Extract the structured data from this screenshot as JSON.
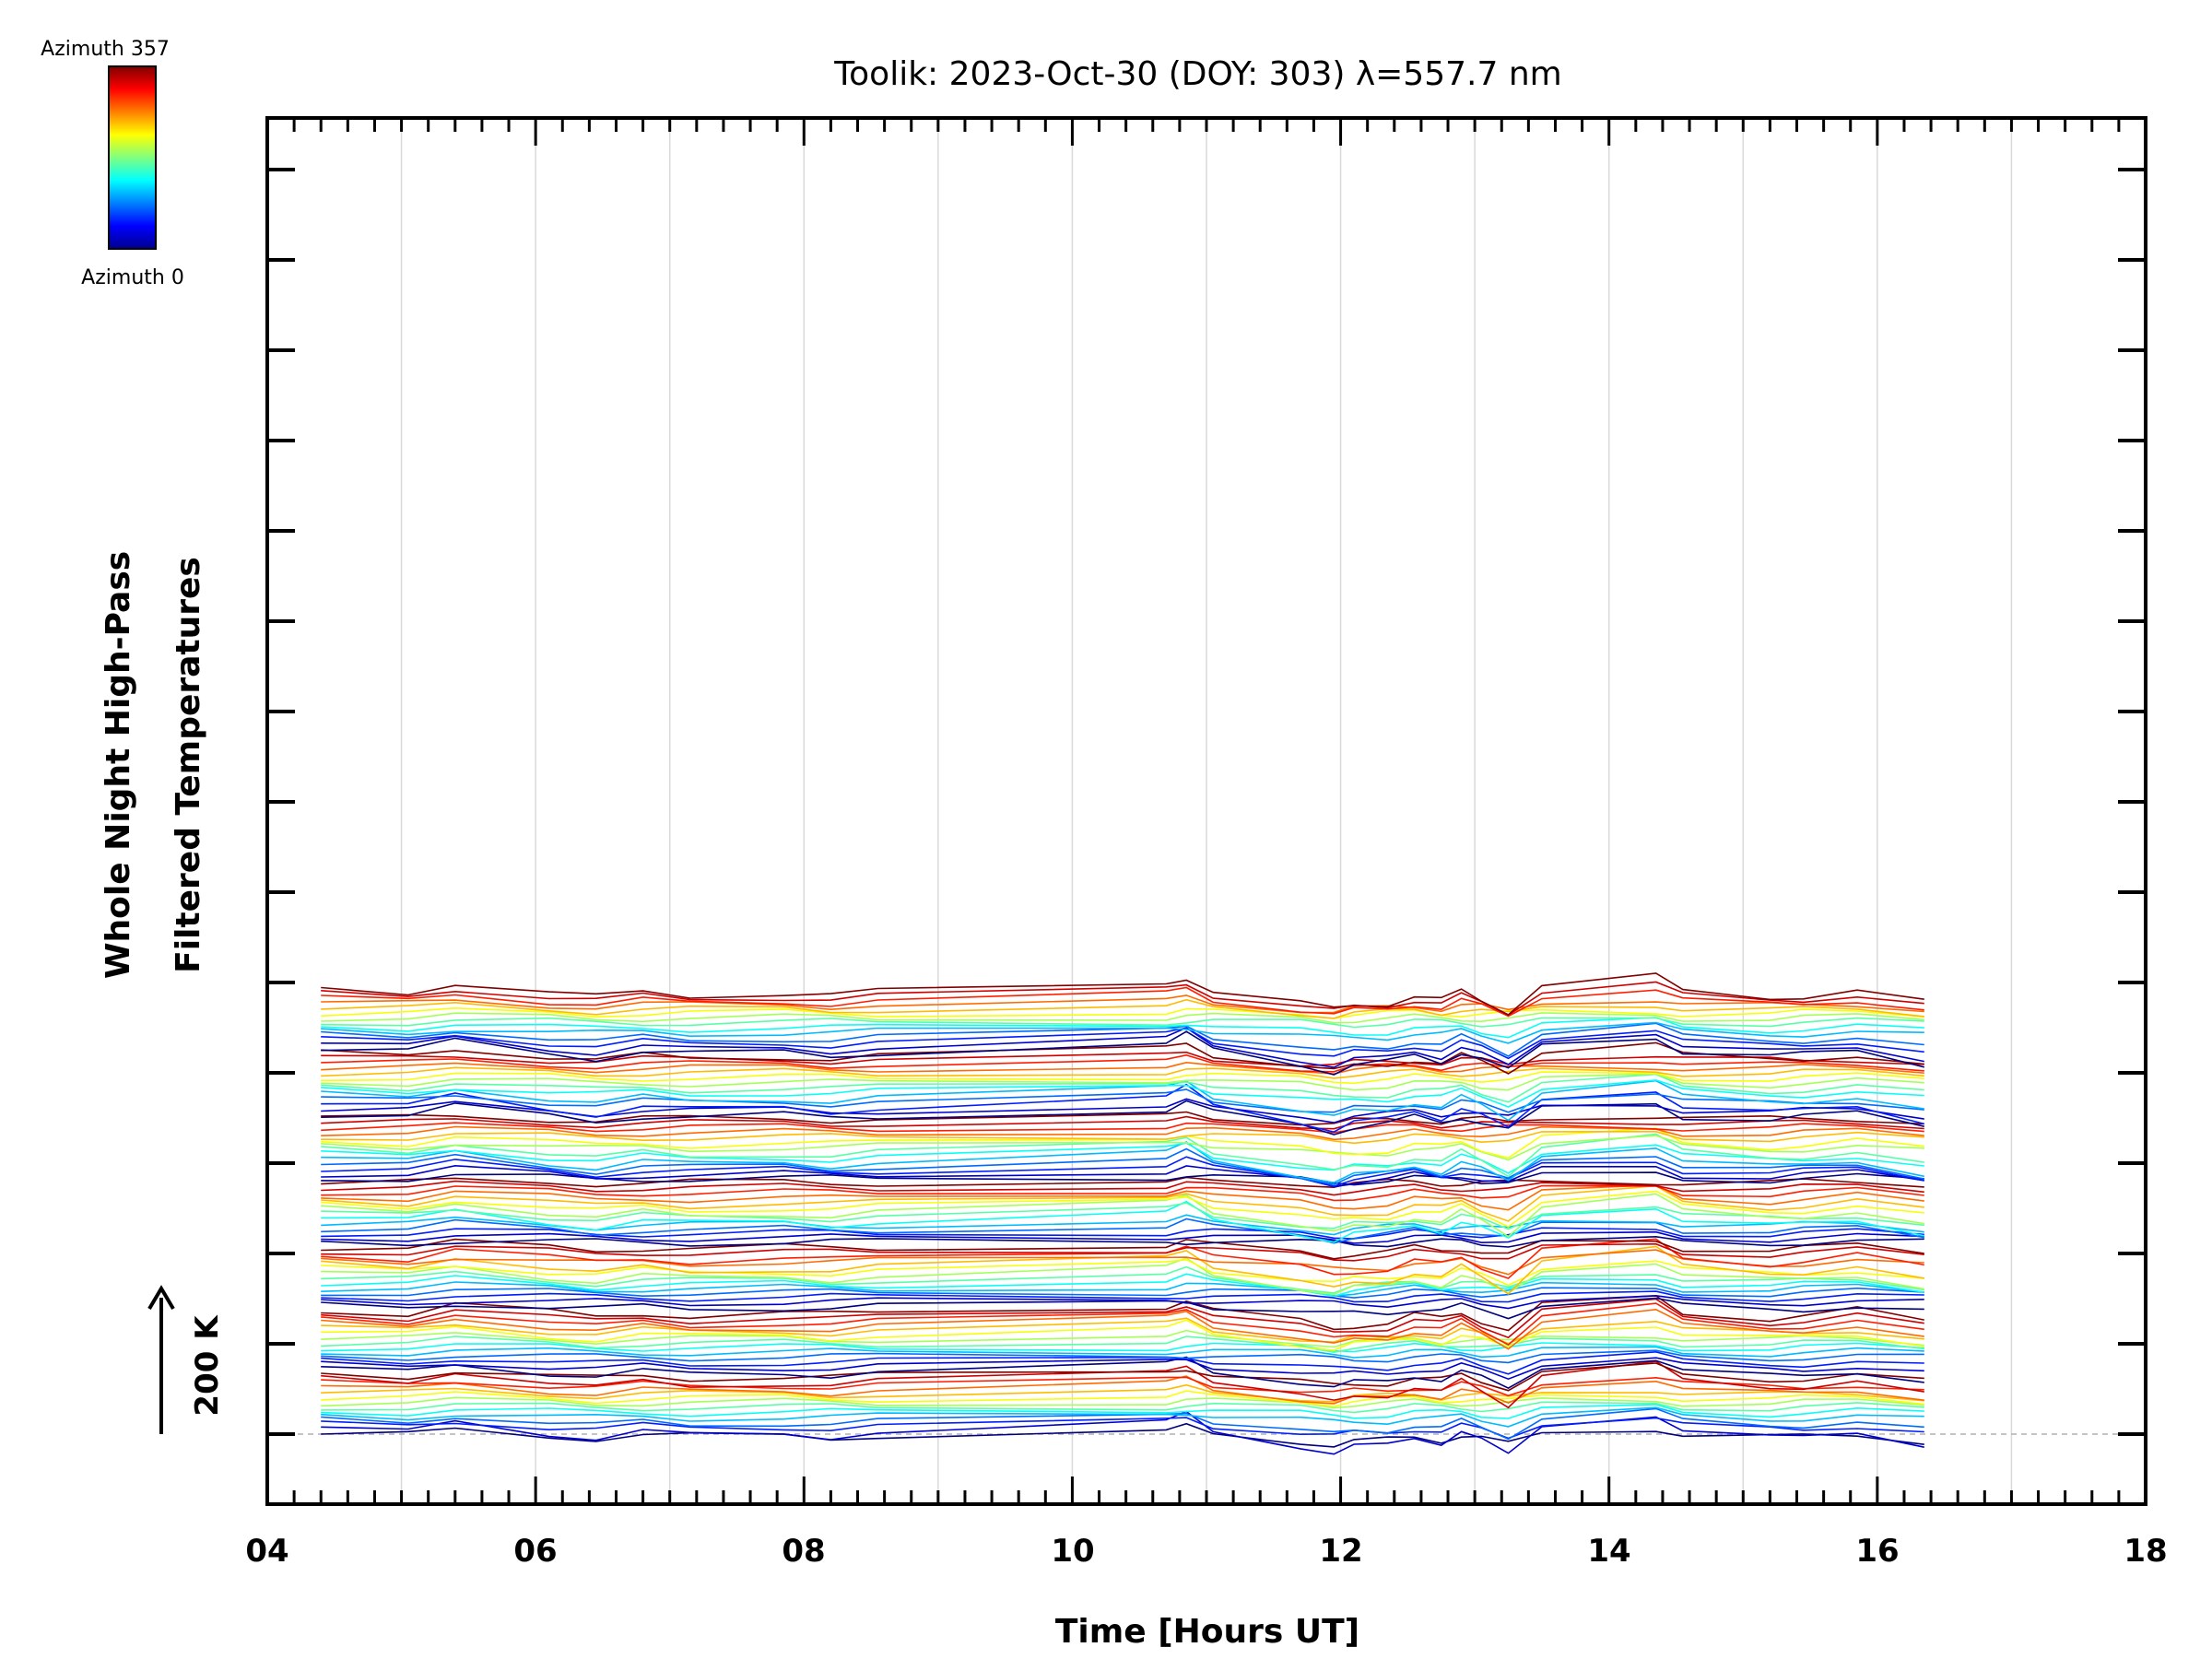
{
  "chart_data": {
    "type": "line",
    "title": "Toolik: 2023-Oct-30 (DOY: 303) λ=557.7 nm",
    "xlabel": "Time [Hours UT]",
    "ylabel_line1": "Whole Night High-Pass",
    "ylabel_line2": "Filtered Temperatures",
    "scale_label": "200 K",
    "xlim": [
      4,
      18
    ],
    "x_ticks": [
      "04",
      "06",
      "08",
      "10",
      "12",
      "14",
      "16",
      "18"
    ],
    "x_tick_values": [
      4,
      6,
      8,
      10,
      12,
      14,
      16,
      18
    ],
    "colorbar": {
      "top_label": "Azimuth 357",
      "bottom_label": "Azimuth 0",
      "colormap": "jet"
    },
    "stack": {
      "groups": 7,
      "lines_per_group": 14,
      "offset_K_per_line": 7,
      "azimuths_deg": [
        0,
        27,
        55,
        82,
        110,
        137,
        165,
        192,
        220,
        247,
        275,
        302,
        330,
        357
      ]
    },
    "times_UT": [
      4.4,
      5.05,
      5.4,
      6.1,
      6.45,
      6.8,
      7.15,
      7.85,
      8.2,
      8.55,
      10.7,
      10.85,
      11.05,
      11.7,
      11.95,
      12.1,
      12.35,
      12.55,
      12.75,
      12.9,
      13.05,
      13.25,
      13.5,
      14.35,
      14.55,
      15.2,
      15.45,
      15.85,
      16.35
    ],
    "profile_K": [
      0,
      -5,
      15,
      -5,
      -15,
      -5,
      -10,
      -5,
      -10,
      -5,
      10,
      25,
      0,
      -25,
      -40,
      -30,
      -25,
      -10,
      -20,
      -5,
      -20,
      -40,
      10,
      25,
      -5,
      -15,
      -10,
      0,
      -25
    ],
    "colors": {
      "frame": "#000000",
      "gridline": "#d9d9d9",
      "baseline": "#b0b0b0"
    }
  }
}
